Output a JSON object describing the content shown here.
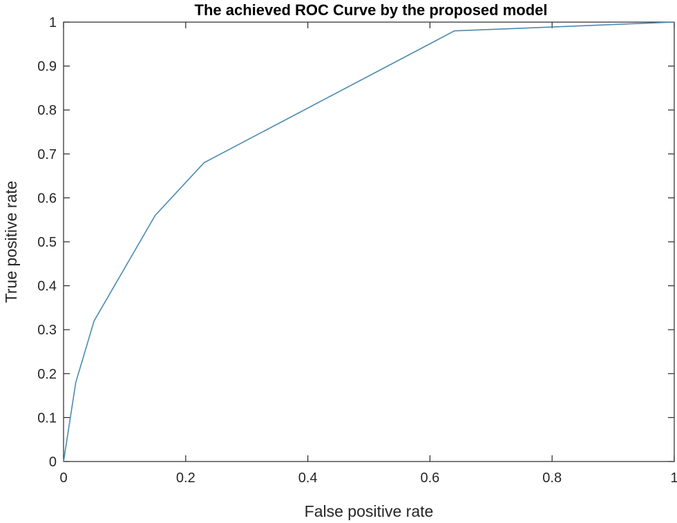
{
  "chart_data": {
    "type": "line",
    "title": "The achieved ROC Curve by the proposed model",
    "xlabel": "False positive rate",
    "ylabel": "True positive rate",
    "xlim": [
      0,
      1
    ],
    "ylim": [
      0,
      1
    ],
    "x_ticks": [
      "0",
      "0.2",
      "0.4",
      "0.6",
      "0.8",
      "1"
    ],
    "y_ticks": [
      "0",
      "0.1",
      "0.2",
      "0.3",
      "0.4",
      "0.5",
      "0.6",
      "0.7",
      "0.8",
      "0.9",
      "1"
    ],
    "grid": false,
    "series": [
      {
        "color": "#4a8ab0",
        "x": [
          0,
          0.02,
          0.05,
          0.15,
          0.23,
          0.64,
          1.0
        ],
        "y": [
          0,
          0.18,
          0.32,
          0.56,
          0.68,
          0.98,
          1.0
        ]
      }
    ]
  }
}
